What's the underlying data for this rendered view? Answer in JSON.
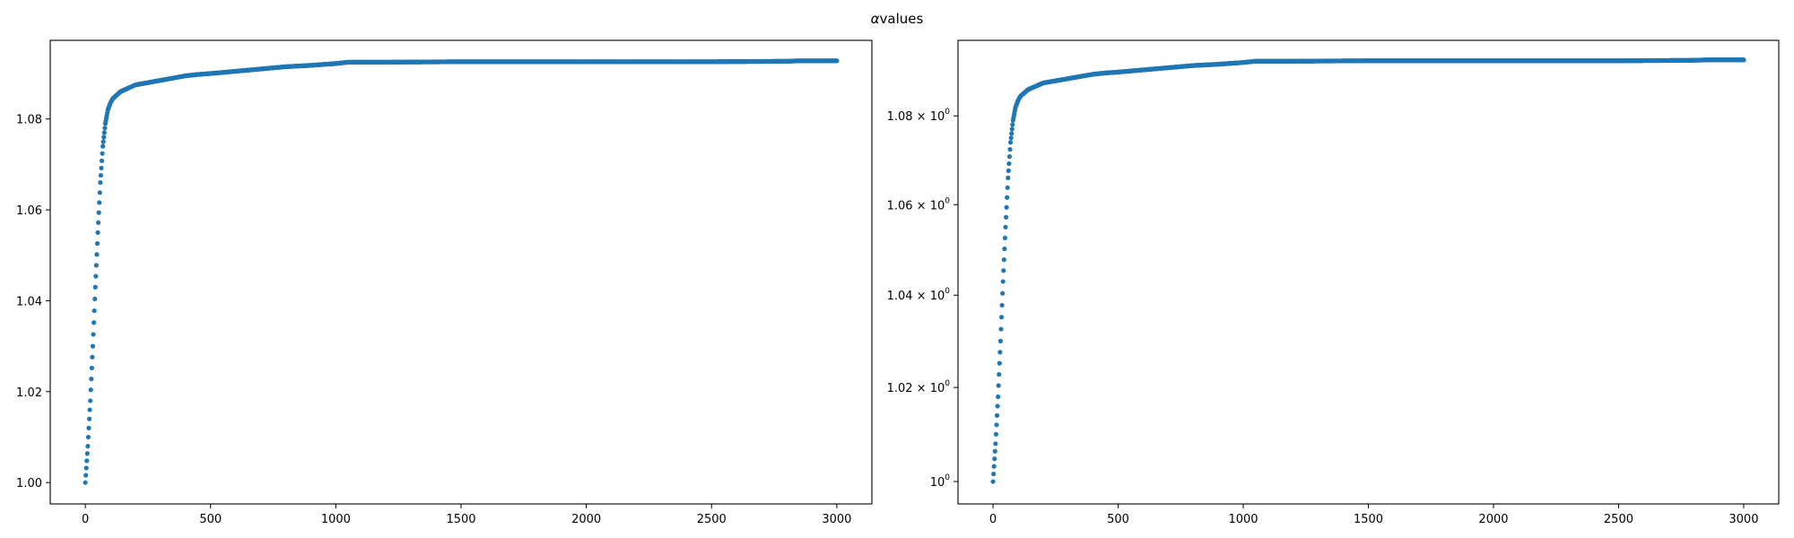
{
  "figure": {
    "suptitle_greek": "α",
    "suptitle_text": "values"
  },
  "chart_data": [
    {
      "type": "scatter",
      "title": "",
      "xlabel": "",
      "ylabel": "",
      "xlim": [
        -140,
        3140
      ],
      "ylim": [
        0.9953,
        1.0973
      ],
      "yscale": "linear",
      "grid": false,
      "xticks": [
        0,
        500,
        1000,
        1500,
        2000,
        2500,
        3000
      ],
      "xtick_labels": [
        "0",
        "500",
        "1000",
        "1500",
        "2000",
        "2500",
        "3000"
      ],
      "yticks": [
        1.0,
        1.02,
        1.04,
        1.06,
        1.08
      ],
      "ytick_labels": [
        "1.00",
        "1.02",
        "1.04",
        "1.06",
        "1.08"
      ],
      "marker_color": "#1f77b4",
      "series": [
        {
          "x": [
            0,
            10,
            20,
            30,
            40,
            50,
            60,
            70,
            80,
            90,
            100,
            110,
            120,
            130,
            140,
            160,
            180,
            200,
            250,
            300,
            350,
            400,
            450,
            500,
            600,
            700,
            800,
            900,
            1000,
            1050,
            1200,
            1500,
            2000,
            2500,
            2800,
            2850,
            3000
          ],
          "y": [
            1.0,
            1.008,
            1.018,
            1.03,
            1.043,
            1.055,
            1.066,
            1.074,
            1.079,
            1.082,
            1.0835,
            1.0845,
            1.085,
            1.0855,
            1.086,
            1.0865,
            1.087,
            1.0875,
            1.088,
            1.0885,
            1.089,
            1.0895,
            1.0898,
            1.09,
            1.0905,
            1.091,
            1.0915,
            1.0918,
            1.0922,
            1.0925,
            1.0925,
            1.0926,
            1.0926,
            1.0926,
            1.0927,
            1.0928,
            1.0928
          ]
        }
      ]
    },
    {
      "type": "scatter",
      "title": "",
      "xlabel": "",
      "ylabel": "",
      "xlim": [
        -140,
        3140
      ],
      "ylim": [
        0.9953,
        1.0973
      ],
      "yscale": "log",
      "grid": false,
      "xticks": [
        0,
        500,
        1000,
        1500,
        2000,
        2500,
        3000
      ],
      "xtick_labels": [
        "0",
        "500",
        "1000",
        "1500",
        "2000",
        "2500",
        "3000"
      ],
      "yticks": [
        1.0,
        1.02,
        1.04,
        1.06,
        1.08
      ],
      "ytick_labels": [
        {
          "mantissa": "",
          "base": "10",
          "exp": "0"
        },
        {
          "mantissa": "1.02 × ",
          "base": "10",
          "exp": "0"
        },
        {
          "mantissa": "1.04 × ",
          "base": "10",
          "exp": "0"
        },
        {
          "mantissa": "1.06 × ",
          "base": "10",
          "exp": "0"
        },
        {
          "mantissa": "1.08 × ",
          "base": "10",
          "exp": "0"
        }
      ],
      "marker_color": "#1f77b4",
      "series": [
        {
          "x": [
            0,
            10,
            20,
            30,
            40,
            50,
            60,
            70,
            80,
            90,
            100,
            110,
            120,
            130,
            140,
            160,
            180,
            200,
            250,
            300,
            350,
            400,
            450,
            500,
            600,
            700,
            800,
            900,
            1000,
            1050,
            1200,
            1500,
            2000,
            2500,
            2800,
            2850,
            3000
          ],
          "y": [
            1.0,
            1.008,
            1.018,
            1.03,
            1.043,
            1.055,
            1.066,
            1.074,
            1.079,
            1.082,
            1.0835,
            1.0845,
            1.085,
            1.0855,
            1.086,
            1.0865,
            1.087,
            1.0875,
            1.088,
            1.0885,
            1.089,
            1.0895,
            1.0898,
            1.09,
            1.0905,
            1.091,
            1.0915,
            1.0918,
            1.0922,
            1.0925,
            1.0925,
            1.0926,
            1.0926,
            1.0926,
            1.0927,
            1.0928,
            1.0928
          ]
        }
      ]
    }
  ]
}
